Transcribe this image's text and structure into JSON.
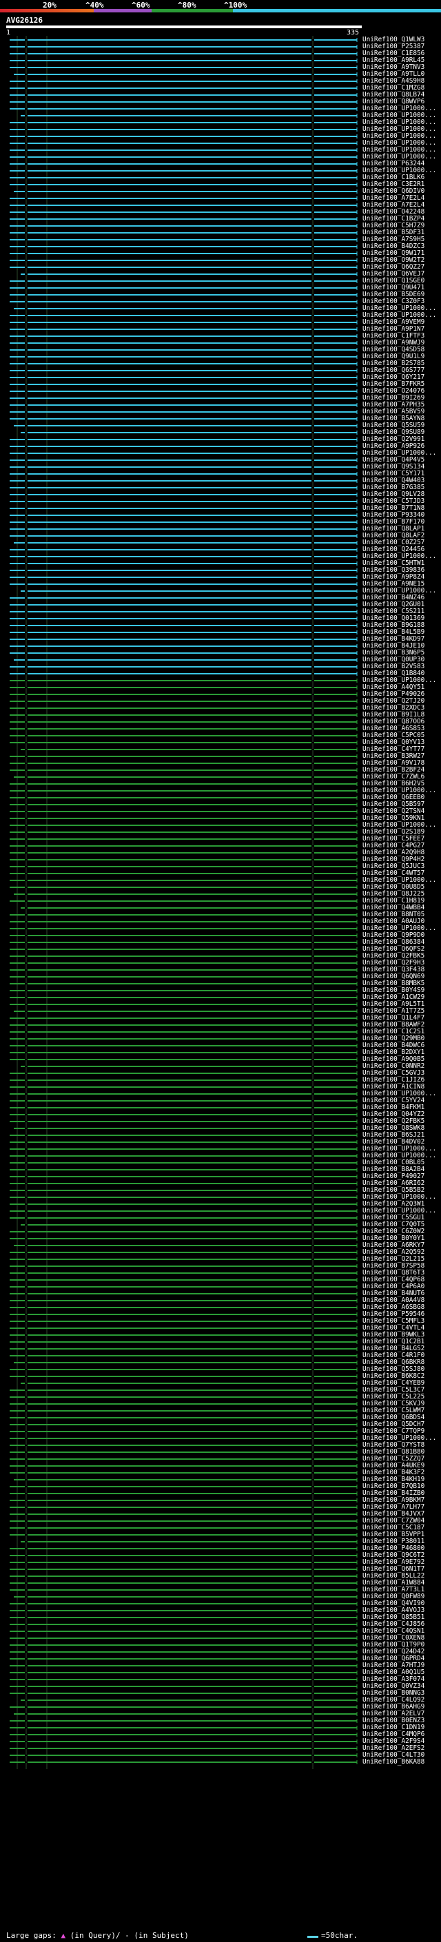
{
  "legend": {
    "labels": [
      "20%",
      "^40%",
      "^60%",
      "^80%",
      "^100%"
    ],
    "colors": [
      "#d4232d",
      "#e8701e",
      "#9b4fc1",
      "#2a9b36",
      "#3ac6e4"
    ]
  },
  "query": {
    "name": "AVG26126",
    "start": "1",
    "end": "335"
  },
  "footer": {
    "large_gaps": "Large gaps:",
    "gaps_text": "(in Query)/ - (in Subject)",
    "scale_text": "=50char."
  },
  "hits": [
    "UniRef100_Q1WLW3",
    "UniRef100_P25387",
    "UniRef100_C1E856",
    "UniRef100_A9RL45",
    "UniRef100_A9TNV3",
    "UniRef100_A9TLL0",
    "UniRef100_A4S9H8",
    "UniRef100_C1MZG8",
    "UniRef100_Q8LB74",
    "UniRef100_Q8WVP6",
    "UniRef100_UP1000...",
    "UniRef100_UP1000...",
    "UniRef100_UP1000...",
    "UniRef100_UP1000...",
    "UniRef100_UP1000...",
    "UniRef100_UP1000...",
    "UniRef100_UP1000...",
    "UniRef100_UP1000...",
    "UniRef100_P63244",
    "UniRef100_UP1000...",
    "UniRef100_C1BLK6",
    "UniRef100_C3E2R1",
    "UniRef100_Q6DIV0",
    "UniRef100_A7E2L4",
    "UniRef100_A7E2L4",
    "UniRef100_O42248",
    "UniRef100_C1BZP4",
    "UniRef100_C5H7Z9",
    "UniRef100_B5DF31",
    "UniRef100_A7S9H5",
    "UniRef100_B4DZC3",
    "UniRef100_Q9W171",
    "UniRef100_O9W2T2",
    "UniRef100_Q6QZ27",
    "UniRef100_Q6VEJ7",
    "UniRef100_Q1SGE0",
    "UniRef100_Q9U471",
    "UniRef100_B5DE69",
    "UniRef100_C3Z0F3",
    "UniRef100_UP1000...",
    "UniRef100_UP1000...",
    "UniRef100_A9VEM9",
    "UniRef100_A9P1N7",
    "UniRef100_C1FTF3",
    "UniRef100_A9NWJ9",
    "UniRef100_Q4SD58",
    "UniRef100_Q9U1L9",
    "UniRef100_B2S785",
    "UniRef100_Q6S777",
    "UniRef100_Q6Y217",
    "UniRef100_B7FKR5",
    "UniRef100_O24076",
    "UniRef100_B9I269",
    "UniRef100_A7PH35",
    "UniRef100_A5BV59",
    "UniRef100_B5AYN8",
    "UniRef100_Q5SU59",
    "UniRef100_Q9SU89",
    "UniRef100_Q2V991",
    "UniRef100_A9P926",
    "UniRef100_UP1000...",
    "UniRef100_Q4P4V5",
    "UniRef100_Q9S134",
    "UniRef100_C5Y171",
    "UniRef100_Q4W403",
    "UniRef100_B7G385",
    "UniRef100_Q9LV28",
    "UniRef100_C5TJD3",
    "UniRef100_B7T1N8",
    "UniRef100_P93340",
    "UniRef100_B7F170",
    "UniRef100_Q8LAP1",
    "UniRef100_Q8LAF2",
    "UniRef100_C0Z257",
    "UniRef100_Q24456",
    "UniRef100_UP1000...",
    "UniRef100_C5HTW1",
    "UniRef100_Q39836",
    "UniRef100_A9P8Z4",
    "UniRef100_A9NE15",
    "UniRef100_UP1000...",
    "UniRef100_B4NZ46",
    "UniRef100_Q2GU01",
    "UniRef100_C5S211",
    "UniRef100_Q01369",
    "UniRef100_B9G188",
    "UniRef100_B4L5B9",
    "UniRef100_B4KD97",
    "UniRef100_B4JE10",
    "UniRef100_B3N6P5",
    "UniRef100_Q0UP30",
    "UniRef100_B2V583",
    "UniRef100_Q1B840",
    "UniRef100_UP1000...",
    "UniRef100_A4QY51",
    "UniRef100_P49026",
    "UniRef100_Q2TJ20",
    "UniRef100_B2XDC3",
    "UniRef100_B9I1L8",
    "UniRef100_Q87OO6",
    "UniRef100_A6S853",
    "UniRef100_C5PC05",
    "UniRef100_Q0YV13",
    "UniRef100_C4YT77",
    "UniRef100_B3RW27",
    "UniRef100_A9V178",
    "UniRef100_B2BF24",
    "UniRef100_C7ZWL6",
    "UniRef100_B6H2V5",
    "UniRef100_UP1000...",
    "UniRef100_Q6EEB0",
    "UniRef100_Q5B597",
    "UniRef100_Q2TSN4",
    "UniRef100_Q59KN1",
    "UniRef100_UP1000...",
    "UniRef100_Q2S189",
    "UniRef100_C5FEE7",
    "UniRef100_C4PG27",
    "UniRef100_A2Q9H8",
    "UniRef100_Q9P4H2",
    "UniRef100_Q5JUC3",
    "UniRef100_C4WT57",
    "UniRef100_UP1000...",
    "UniRef100_Q0U8D5",
    "UniRef100_Q8J225",
    "UniRef100_C1H819",
    "UniRef100_Q4WBB4",
    "UniRef100_B8NT05",
    "UniRef100_A0AUJ0",
    "UniRef100_UP1000...",
    "UniRef100_Q9P9D0",
    "UniRef100_Q86384",
    "UniRef100_Q6QFS2",
    "UniRef100_Q2FBK5",
    "UniRef100_Q2F9H3",
    "UniRef100_Q3F438",
    "UniRef100_Q6QN69",
    "UniRef100_B8MBK5",
    "UniRef100_B0Y4S9",
    "UniRef100_A1CW29",
    "UniRef100_A9L5T1",
    "UniRef100_A1T7Z5",
    "UniRef100_Q1L4F7",
    "UniRef100_B8AWF2",
    "UniRef100_C1C2S1",
    "UniRef100_Q29MB0",
    "UniRef100_B4DWC6",
    "UniRef100_B2DXY1",
    "UniRef100_A9Q0B5",
    "UniRef100_C0NNR2",
    "UniRef100_C5GVJ3",
    "UniRef100_C1JIZ6",
    "UniRef100_A1CIN8",
    "UniRef100_UP1000...",
    "UniRef100_C5YV24",
    "UniRef100_B4FKM1",
    "UniRef100_Q04YZ2",
    "UniRef100_Q2FBK5",
    "UniRef100_Q8SWK8",
    "UniRef100_B6SJ21",
    "UniRef100_B4DV02",
    "UniRef100_UP1000...",
    "UniRef100_UP1000...",
    "UniRef100_C0BL05",
    "UniRef100_B8A2B4",
    "UniRef100_P49027",
    "UniRef100_A6RI62",
    "UniRef100_Q5B5B2",
    "UniRef100_UP1000...",
    "UniRef100_A2Q3W1",
    "UniRef100_UP1000...",
    "UniRef100_C5SGU1",
    "UniRef100_C7Q0T5",
    "UniRef100_C6Z0W2",
    "UniRef100_B0Y0Y1",
    "UniRef100_A6RKY7",
    "UniRef100_A2Q592",
    "UniRef100_Q2L215",
    "UniRef100_B7SP58",
    "UniRef100_Q8T6T3",
    "UniRef100_C4QP68",
    "UniRef100_C4P6A0",
    "UniRef100_B4NUT6",
    "UniRef100_A0A4V8",
    "UniRef100_A6SBG8",
    "UniRef100_P59546",
    "UniRef100_C5MFL3",
    "UniRef100_C4VTL4",
    "UniRef100_B9WKL3",
    "UniRef100_Q1C2B1",
    "UniRef100_B4LGS2",
    "UniRef100_C4R1F0",
    "UniRef100_Q6BKR8",
    "UniRef100_Q5SJ80",
    "UniRef100_B6K8C2",
    "UniRef100_C4YEB9",
    "UniRef100_C5L3C7",
    "UniRef100_C5L225",
    "UniRef100_C5KVJ9",
    "UniRef100_C5LWM7",
    "UniRef100_Q6BDS4",
    "UniRef100_Q5DCH7",
    "UniRef100_C7TQP9",
    "UniRef100_UP1000...",
    "UniRef100_Q7YST8",
    "UniRef100_Q81B80",
    "UniRef100_C5ZZQ7",
    "UniRef100_A4UKE9",
    "UniRef100_B4K3F2",
    "UniRef100_B4KH19",
    "UniRef100_B7QB10",
    "UniRef100_B4IZB0",
    "UniRef100_A9BKM7",
    "UniRef100_A7LH77",
    "UniRef100_B4JVX7",
    "UniRef100_C7ZW04",
    "UniRef100_C5C187",
    "UniRef100_B5VPP1",
    "UniRef100_P38011",
    "UniRef100_P46800",
    "UniRef100_Q9C6T2",
    "UniRef100_A9E792",
    "UniRef100_Q6N1T7",
    "UniRef100_B5LL22",
    "UniRef100_A1W884",
    "UniRef100_A7T3L1",
    "UniRef100_Q0FW89",
    "UniRef100_Q4VI90",
    "UniRef100_A4VOJ3",
    "UniRef100_Q85B51",
    "UniRef100_C4J856",
    "UniRef100_C4QSN1",
    "UniRef100_C0XEN8",
    "UniRef100_Q1T9P0",
    "UniRef100_Q24D42",
    "UniRef100_Q6PRD4",
    "UniRef100_A7HTJ9",
    "UniRef100_A0Q1U5",
    "UniRef100_A3F074",
    "UniRef100_Q0VZ34",
    "UniRef100_B0NNG3",
    "UniRef100_C4LQ92",
    "UniRef100_B6AHG9",
    "UniRef100_A2ELV7",
    "UniRef100_B0ENZ3",
    "UniRef100_C1DN19",
    "UniRef100_C4MQP6",
    "UniRef100_A2F9S4",
    "UniRef100_A2EFS2",
    "UniRef100_C4LT30",
    "UniRef100_B6KA88"
  ]
}
